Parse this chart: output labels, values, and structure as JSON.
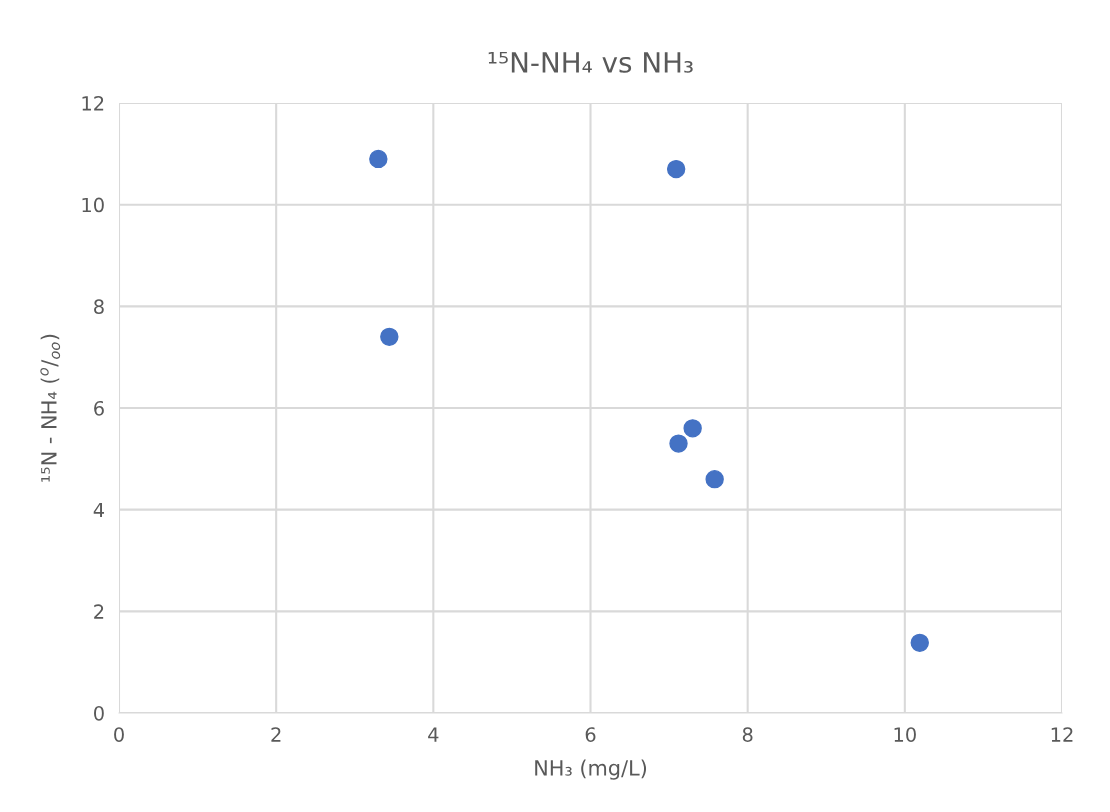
{
  "chart_data": {
    "type": "scatter",
    "title": "¹⁵N-NH₄ vs NH₃",
    "xlabel": "NH₃ (mg/L)",
    "ylabel": "¹⁵N - NH₄ ($^{o}$/$_{oo}$)",
    "x": [
      3.3,
      7.09,
      3.44,
      7.3,
      7.12,
      7.58,
      10.19
    ],
    "series": [
      {
        "color": "#4472c4",
        "values": [
          10.9,
          10.7,
          7.4,
          5.6,
          5.3,
          4.6,
          1.38
        ]
      }
    ],
    "xlim": [
      0,
      12
    ],
    "xticks": [
      0,
      2,
      4,
      6,
      8,
      10,
      12
    ],
    "ylim": [
      0,
      12
    ],
    "yticks": [
      0,
      2,
      4,
      6,
      8,
      10,
      12
    ],
    "grid": true,
    "marker": "circle"
  }
}
